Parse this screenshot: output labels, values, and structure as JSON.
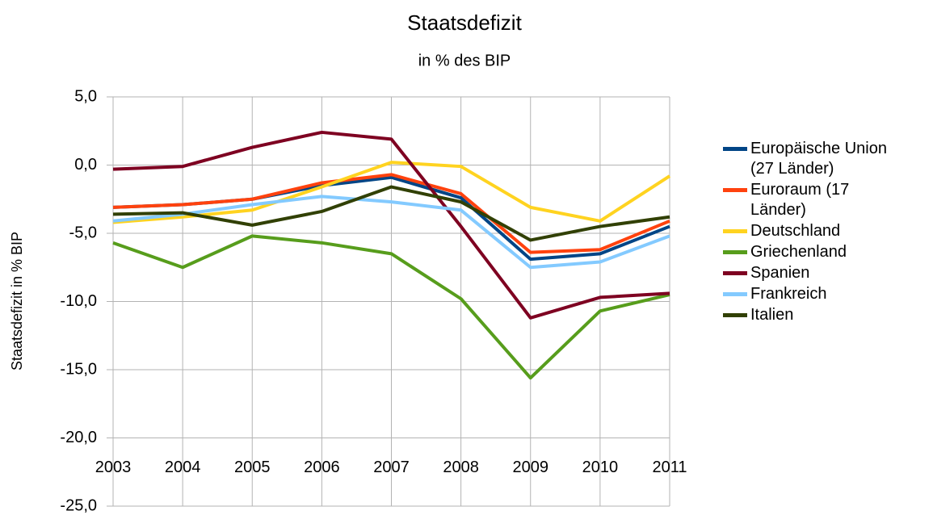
{
  "chart_data": {
    "type": "line",
    "title": "Staatsdefizit",
    "subtitle": "in % des BIP",
    "y_label": "Staatsdefizit in % BIP",
    "categories": [
      "2003",
      "2004",
      "2005",
      "2006",
      "2007",
      "2008",
      "2009",
      "2010",
      "2011"
    ],
    "series": [
      {
        "name": "Europäische Union (27 Länder)",
        "color": "#004586",
        "values": [
          -3.1,
          -2.9,
          -2.5,
          -1.5,
          -0.9,
          -2.4,
          -6.9,
          -6.5,
          -4.5
        ]
      },
      {
        "name": "Euroraum (17 Länder)",
        "color": "#ff420e",
        "values": [
          -3.1,
          -2.9,
          -2.5,
          -1.3,
          -0.7,
          -2.1,
          -6.4,
          -6.2,
          -4.1
        ]
      },
      {
        "name": "Deutschland",
        "color": "#ffd320",
        "values": [
          -4.2,
          -3.8,
          -3.3,
          -1.6,
          0.2,
          -0.1,
          -3.1,
          -4.1,
          -0.8
        ]
      },
      {
        "name": "Griechenland",
        "color": "#579d1c",
        "values": [
          -5.7,
          -7.5,
          -5.2,
          -5.7,
          -6.5,
          -9.8,
          -15.6,
          -10.7,
          -9.5
        ]
      },
      {
        "name": "Spanien",
        "color": "#7e0021",
        "values": [
          -0.3,
          -0.1,
          1.3,
          2.4,
          1.9,
          -4.5,
          -11.2,
          -9.7,
          -9.4
        ]
      },
      {
        "name": "Frankreich",
        "color": "#83caff",
        "values": [
          -4.1,
          -3.6,
          -2.9,
          -2.3,
          -2.7,
          -3.3,
          -7.5,
          -7.1,
          -5.2
        ]
      },
      {
        "name": "Italien",
        "color": "#314004",
        "values": [
          -3.6,
          -3.5,
          -4.4,
          -3.4,
          -1.6,
          -2.7,
          -5.5,
          -4.5,
          -3.8
        ]
      }
    ],
    "ylim": [
      -25,
      5
    ],
    "yticks": [
      {
        "value": -25,
        "label": "-25,0"
      },
      {
        "value": -20,
        "label": "-20,0"
      },
      {
        "value": -15,
        "label": "-15,0"
      },
      {
        "value": -10,
        "label": "-10,0"
      },
      {
        "value": -5,
        "label": "-5,0"
      },
      {
        "value": 0,
        "label": "0,0"
      },
      {
        "value": 5,
        "label": "5,0"
      }
    ],
    "grid": true
  }
}
